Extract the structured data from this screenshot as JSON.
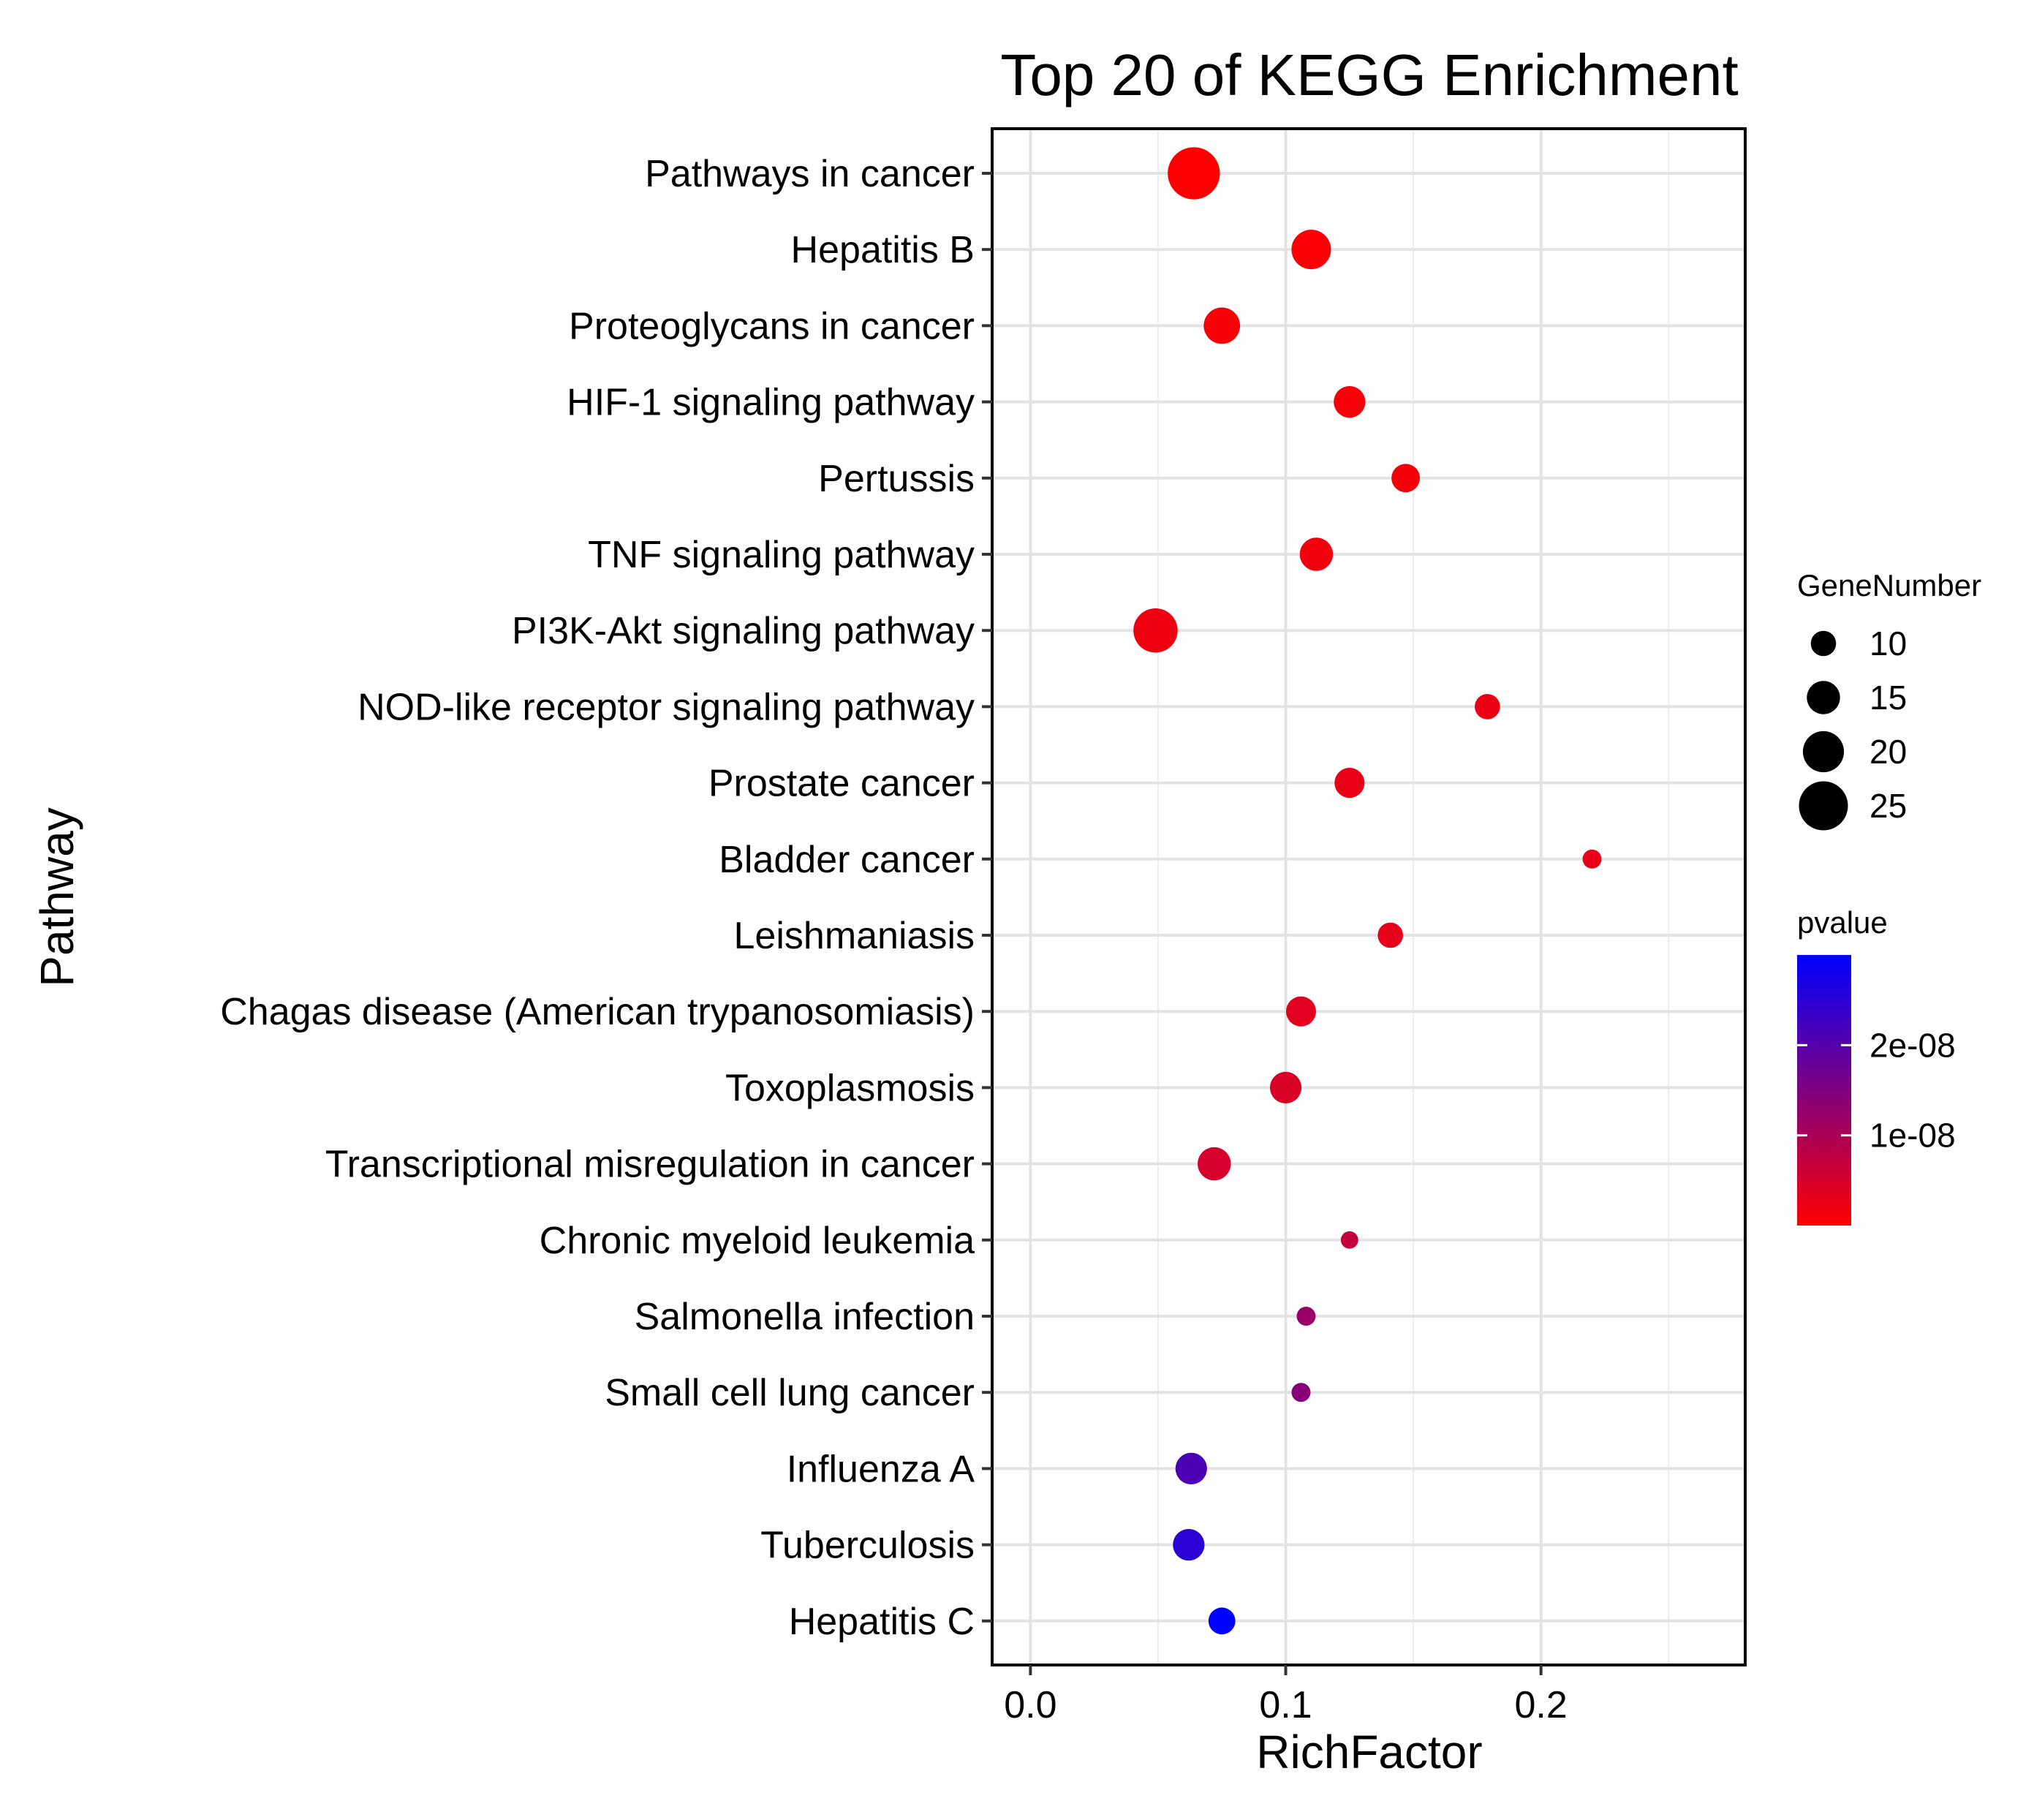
{
  "chart_data": {
    "type": "scatter",
    "title": "Top 20 of KEGG Enrichment",
    "xlabel": "RichFactor",
    "ylabel": "Pathway",
    "xlim": [
      -0.015,
      0.28
    ],
    "xticks": [
      0.0,
      0.1,
      0.2
    ],
    "xtick_labels": [
      "0.0",
      "0.1",
      "0.2"
    ],
    "grid": true,
    "points": [
      {
        "pathway": "Pathways in cancer",
        "rich_factor": 0.064,
        "gene_number": 27,
        "pvalue": 1e-10
      },
      {
        "pathway": "Hepatitis B",
        "rich_factor": 0.11,
        "gene_number": 19,
        "pvalue": 5e-10
      },
      {
        "pathway": "Proteoglycans in cancer",
        "rich_factor": 0.075,
        "gene_number": 17,
        "pvalue": 8e-10
      },
      {
        "pathway": "HIF-1 signaling pathway",
        "rich_factor": 0.125,
        "gene_number": 14,
        "pvalue": 1e-09
      },
      {
        "pathway": "Pertussis",
        "rich_factor": 0.147,
        "gene_number": 12,
        "pvalue": 1.3e-09
      },
      {
        "pathway": "TNF signaling pathway",
        "rich_factor": 0.112,
        "gene_number": 15,
        "pvalue": 1.5e-09
      },
      {
        "pathway": "PI3K-Akt signaling pathway",
        "rich_factor": 0.049,
        "gene_number": 22,
        "pvalue": 2e-09
      },
      {
        "pathway": "NOD-like receptor signaling pathway",
        "rich_factor": 0.179,
        "gene_number": 10,
        "pvalue": 2.5e-09
      },
      {
        "pathway": "Prostate cancer",
        "rich_factor": 0.125,
        "gene_number": 13,
        "pvalue": 2.6e-09
      },
      {
        "pathway": "Bladder cancer",
        "rich_factor": 0.22,
        "gene_number": 6,
        "pvalue": 2.8e-09
      },
      {
        "pathway": "Leishmaniasis",
        "rich_factor": 0.141,
        "gene_number": 10,
        "pvalue": 3e-09
      },
      {
        "pathway": "Chagas disease (American trypanosomiasis)",
        "rich_factor": 0.106,
        "gene_number": 13,
        "pvalue": 3.5e-09
      },
      {
        "pathway": "Toxoplasmosis",
        "rich_factor": 0.1,
        "gene_number": 14,
        "pvalue": 4.5e-09
      },
      {
        "pathway": "Transcriptional misregulation in cancer",
        "rich_factor": 0.072,
        "gene_number": 15,
        "pvalue": 5e-09
      },
      {
        "pathway": "Chronic myeloid leukemia",
        "rich_factor": 0.125,
        "gene_number": 5,
        "pvalue": 7e-09
      },
      {
        "pathway": "Salmonella infection",
        "rich_factor": 0.108,
        "gene_number": 6,
        "pvalue": 1.2e-08
      },
      {
        "pathway": "Small cell lung cancer",
        "rich_factor": 0.106,
        "gene_number": 6,
        "pvalue": 1.4e-08
      },
      {
        "pathway": "Influenza A",
        "rich_factor": 0.063,
        "gene_number": 14,
        "pvalue": 2.1e-08
      },
      {
        "pathway": "Tuberculosis",
        "rich_factor": 0.062,
        "gene_number": 14,
        "pvalue": 2.5e-08
      },
      {
        "pathway": "Hepatitis C",
        "rich_factor": 0.075,
        "gene_number": 11,
        "pvalue": 3e-08
      }
    ],
    "size_legend": {
      "title": "GeneNumber",
      "entries": [
        10,
        15,
        20,
        25
      ],
      "labels": [
        "10",
        "15",
        "20",
        "25"
      ]
    },
    "color_legend": {
      "title": "pvalue",
      "range": [
        0,
        3e-08
      ],
      "low_color": "#ff0000",
      "high_color": "#0000ff",
      "ticks": [
        1e-08,
        2e-08
      ],
      "tick_labels": [
        "1e-08",
        "2e-08"
      ]
    }
  }
}
